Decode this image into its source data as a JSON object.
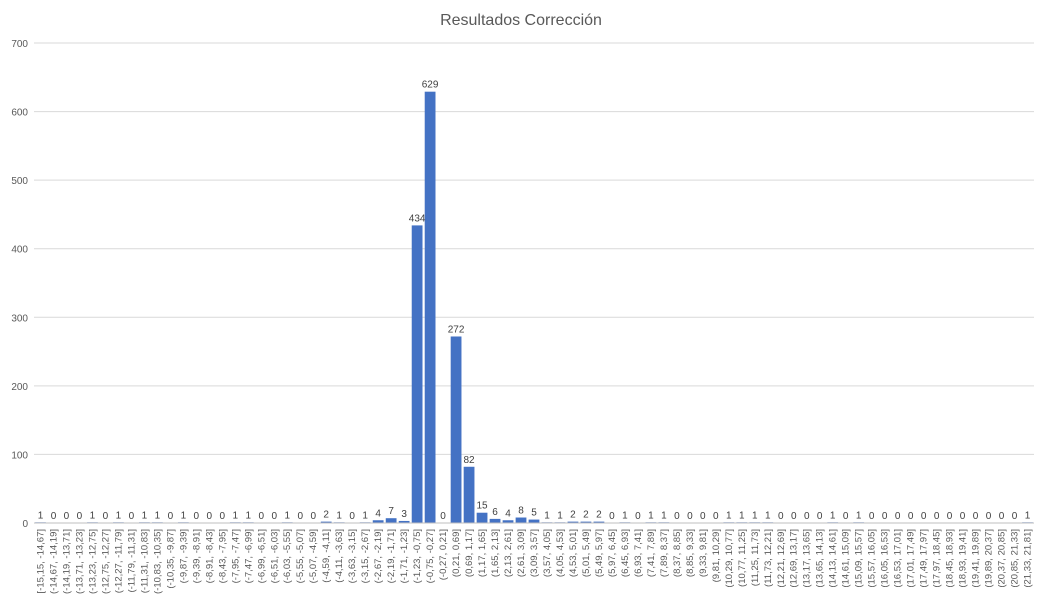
{
  "chart_data": {
    "type": "bar",
    "title": "Resultados Corrección",
    "xlabel": "",
    "ylabel": "",
    "ylim": [
      0,
      700
    ],
    "yticks": [
      0,
      100,
      200,
      300,
      400,
      500,
      600,
      700
    ],
    "grid": true,
    "legend": "none",
    "bar_color": "#4472c4",
    "categories": [
      "[-15,15, -14,67]",
      "(-14,67, -14,19]",
      "(-14,19, -13,71]",
      "(-13,71, -13,23]",
      "(-13,23, -12,75]",
      "(-12,75, -12,27]",
      "(-12,27, -11,79]",
      "(-11,79, -11,31]",
      "(-11,31, -10,83]",
      "(-10,83, -10,35]",
      "(-10,35, -9,87]",
      "(-9,87, -9,39]",
      "(-9,39, -8,91]",
      "(-8,91, -8,43]",
      "(-8,43, -7,95]",
      "(-7,95, -7,47]",
      "(-7,47, -6,99]",
      "(-6,99, -6,51]",
      "(-6,51, -6,03]",
      "(-6,03, -5,55]",
      "(-5,55, -5,07]",
      "(-5,07, -4,59]",
      "(-4,59, -4,11]",
      "(-4,11, -3,63]",
      "(-3,63, -3,15]",
      "(-3,15, -2,67]",
      "(-2,67, -2,19]",
      "(-2,19, -1,71]",
      "(-1,71, -1,23]",
      "(-1,23, -0,75]",
      "(-0,75, -0,27]",
      "(-0,27, 0,21]",
      "(0,21, 0,69]",
      "(0,69, 1,17]",
      "(1,17, 1,65]",
      "(1,65, 2,13]",
      "(2,13, 2,61]",
      "(2,61, 3,09]",
      "(3,09, 3,57]",
      "(3,57, 4,05]",
      "(4,05, 4,53]",
      "(4,53, 5,01]",
      "(5,01, 5,49]",
      "(5,49, 5,97]",
      "(5,97, 6,45]",
      "(6,45, 6,93]",
      "(6,93, 7,41]",
      "(7,41, 7,89]",
      "(7,89, 8,37]",
      "(8,37, 8,85]",
      "(8,85, 9,33]",
      "(9,33, 9,81]",
      "(9,81, 10,29]",
      "(10,29, 10,77]",
      "(10,77, 11,25]",
      "(11,25, 11,73]",
      "(11,73, 12,21]",
      "(12,21, 12,69]",
      "(12,69, 13,17]",
      "(13,17, 13,65]",
      "(13,65, 14,13]",
      "(14,13, 14,61]",
      "(14,61, 15,09]",
      "(15,09, 15,57]",
      "(15,57, 16,05]",
      "(16,05, 16,53]",
      "(16,53, 17,01]",
      "(17,01, 17,49]",
      "(17,49, 17,97]",
      "(17,97, 18,45]",
      "(18,45, 18,93]",
      "(18,93, 19,41]",
      "(19,41, 19,89]",
      "(19,89, 20,37]",
      "(20,37, 20,85]",
      "(20,85, 21,33]",
      "(21,33, 21,81]"
    ],
    "values": [
      1,
      0,
      0,
      0,
      1,
      0,
      1,
      0,
      1,
      1,
      0,
      1,
      0,
      0,
      0,
      1,
      1,
      0,
      0,
      1,
      0,
      0,
      2,
      1,
      0,
      1,
      4,
      7,
      3,
      434,
      629,
      0,
      272,
      82,
      15,
      6,
      4,
      8,
      5,
      1,
      1,
      2,
      2,
      2,
      0,
      1,
      0,
      1,
      1,
      0,
      0,
      0,
      0,
      1,
      1,
      1,
      1,
      0,
      0,
      0,
      0,
      1,
      0,
      1,
      0,
      0,
      0,
      0,
      0,
      0,
      0,
      0,
      0,
      0,
      0,
      0,
      1
    ]
  }
}
